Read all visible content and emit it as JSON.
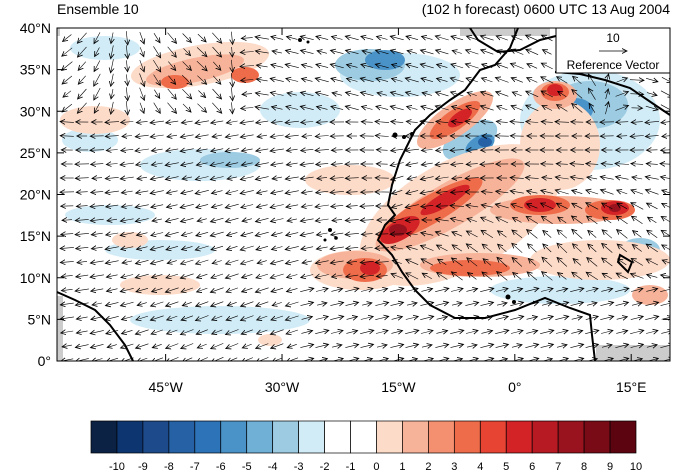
{
  "header": {
    "left_title": "Ensemble 10",
    "right_title": "(102 h forecast) 0600 UTC 13 Aug 2004"
  },
  "map": {
    "lon_range": [
      -59,
      20
    ],
    "lat_range": [
      0,
      40
    ],
    "x_ticks": [
      "45°W",
      "30°W",
      "15°W",
      "0°",
      "15°E"
    ],
    "y_ticks": [
      "0°",
      "5°N",
      "10°N",
      "15°N",
      "20°N",
      "25°N",
      "30°N",
      "35°N",
      "40°N"
    ],
    "background": "#ffffff",
    "missing_color": "#cccccc",
    "coast_color": "#000000"
  },
  "reference_vector": {
    "magnitude_label": "10",
    "caption": "Reference Vector"
  },
  "colorbar": {
    "labels": [
      "-10",
      "-9",
      "-8",
      "-7",
      "-6",
      "-5",
      "-4",
      "-3",
      "-2",
      "-1",
      "0",
      "1",
      "2",
      "3",
      "4",
      "5",
      "6",
      "7",
      "8",
      "9",
      "10"
    ],
    "colors": [
      "#0c2244",
      "#0d3570",
      "#1c4a8a",
      "#2561a4",
      "#2c74b7",
      "#4a93c9",
      "#70afd6",
      "#9ccbe2",
      "#d2ecf7",
      "#ffffff",
      "#ffffff",
      "#fddbc9",
      "#f7b399",
      "#f4906f",
      "#ef6c4b",
      "#e84433",
      "#d32327",
      "#b71a22",
      "#98131d",
      "#780b16",
      "#5c0510"
    ]
  }
}
